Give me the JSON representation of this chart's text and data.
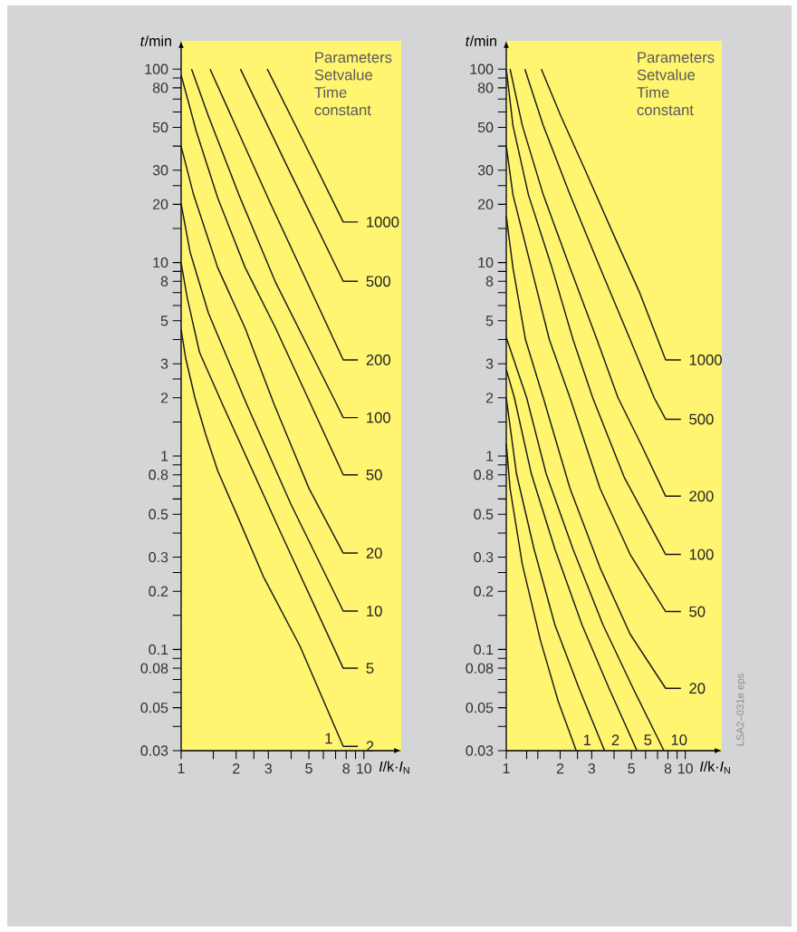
{
  "chart_data": [
    {
      "type": "line",
      "log": "xy",
      "xlabel": "*I*/k·*I*$_{N}$",
      "ylabel": "*t*/min",
      "legend_title": "Parameters Setvalue Time constant",
      "xlim": [
        1,
        16
      ],
      "ylim": [
        0.03,
        140
      ],
      "xticks": [
        1,
        {
          "value": 1.5,
          "label": null
        },
        2,
        {
          "value": 2.5,
          "label": null
        },
        3,
        {
          "value": 4,
          "label": null
        },
        5,
        {
          "value": 6,
          "label": null
        },
        {
          "value": 7,
          "label": null
        },
        8,
        {
          "value": 9,
          "label": null
        },
        10
      ],
      "yticks": [
        0.03,
        {
          "value": 0.04,
          "label": null
        },
        0.05,
        {
          "value": 0.06,
          "label": null
        },
        {
          "value": 0.07,
          "label": null
        },
        0.08,
        {
          "value": 0.09,
          "label": null
        },
        0.1,
        {
          "value": 0.15,
          "label": null
        },
        0.2,
        {
          "value": 0.25,
          "label": null
        },
        0.3,
        {
          "value": 0.4,
          "label": null
        },
        0.5,
        {
          "value": 0.6,
          "label": null
        },
        {
          "value": 0.7,
          "label": null
        },
        0.8,
        {
          "value": 0.9,
          "label": null
        },
        1,
        {
          "value": 1.5,
          "label": null
        },
        2,
        {
          "value": 2.5,
          "label": null
        },
        3,
        {
          "value": 4,
          "label": null
        },
        5,
        {
          "value": 6,
          "label": null
        },
        {
          "value": 7,
          "label": null
        },
        8,
        {
          "value": 9,
          "label": null
        },
        10,
        {
          "value": 15,
          "label": null
        },
        20,
        {
          "value": 25,
          "label": null
        },
        30,
        {
          "value": 40,
          "label": null
        },
        50,
        {
          "value": 60,
          "label": null
        },
        {
          "value": 70,
          "label": null
        },
        80,
        {
          "value": 90,
          "label": null
        },
        100
      ],
      "series": [
        {
          "name": "1000",
          "color": "#1a1a1a",
          "x": [
            2.96,
            4.77,
            7.71,
            9.27
          ],
          "values": [
            100,
            40.6,
            16.2,
            16.2
          ]
        },
        {
          "name": "500",
          "color": "#1a1a1a",
          "x": [
            2.11,
            3.98,
            7.71,
            9.27
          ],
          "values": [
            100,
            28.8,
            8.0,
            8.0
          ]
        },
        {
          "name": "200",
          "color": "#1a1a1a",
          "x": [
            1.44,
            3.04,
            7.71,
            9.27
          ],
          "values": [
            100,
            20.8,
            3.14,
            3.14
          ]
        },
        {
          "name": "100",
          "color": "#1a1a1a",
          "x": [
            1.14,
            1.41,
            2.07,
            3.29,
            7.08,
            7.71,
            9.27
          ],
          "values": [
            100,
            57.2,
            22.4,
            7.88,
            1.86,
            1.58,
            1.58
          ]
        },
        {
          "name": "50",
          "color": "#1a1a1a",
          "x": [
            1,
            1.21,
            1.585,
            2.24,
            3.29,
            5.11,
            7.71,
            9.27
          ],
          "values": [
            93,
            47.7,
            21.6,
            9.42,
            4.58,
            1.86,
            0.8,
            0.8
          ]
        },
        {
          "name": "20",
          "color": "#1a1a1a",
          "x": [
            1,
            1.17,
            1.585,
            2.24,
            3.22,
            5.01,
            7.71,
            9.27
          ],
          "values": [
            39.9,
            22.4,
            9.42,
            4.58,
            1.86,
            0.679,
            0.315,
            0.315
          ]
        },
        {
          "name": "10",
          "color": "#1a1a1a",
          "x": [
            1,
            1.12,
            1.41,
            2.28,
            3.98,
            7.71,
            9.27
          ],
          "values": [
            20.1,
            11.3,
            5.49,
            1.86,
            0.566,
            0.158,
            0.158
          ]
        },
        {
          "name": "5",
          "color": "#1a1a1a",
          "x": [
            1,
            1.08,
            1.26,
            1.68,
            3.41,
            7.71,
            9.27
          ],
          "values": [
            9.95,
            6.57,
            3.44,
            1.86,
            0.425,
            0.08,
            0.08
          ]
        },
        {
          "name": "2",
          "color": "#1a1a1a",
          "x": [
            1,
            1.06,
            1.19,
            1.36,
            1.585,
            1.995,
            2.82,
            4.47,
            7.71,
            9.27
          ],
          "values": [
            4.5,
            3.19,
            2.0,
            1.3,
            0.84,
            0.51,
            0.238,
            0.104,
            0.0316,
            0.0316
          ]
        }
      ],
      "annotations": [
        "1"
      ]
    },
    {
      "type": "line",
      "log": "xy",
      "xlabel": "*I*/k·*I*$_{N}$",
      "ylabel": "*t*/min",
      "legend_title": "Parameters Setvalue Time constant",
      "xlim": [
        1,
        16
      ],
      "ylim": [
        0.03,
        140
      ],
      "xticks": [
        1,
        {
          "value": 1.3,
          "label": null
        },
        {
          "value": 1.5,
          "label": null
        },
        2,
        {
          "value": 2.5,
          "label": null
        },
        3,
        {
          "value": 4,
          "label": null
        },
        5,
        {
          "value": 6,
          "label": null
        },
        {
          "value": 7,
          "label": null
        },
        8,
        {
          "value": 9,
          "label": null
        },
        10
      ],
      "yticks": [
        0.03,
        {
          "value": 0.04,
          "label": null
        },
        0.05,
        {
          "value": 0.06,
          "label": null
        },
        {
          "value": 0.07,
          "label": null
        },
        0.08,
        {
          "value": 0.09,
          "label": null
        },
        0.1,
        {
          "value": 0.15,
          "label": null
        },
        0.2,
        {
          "value": 0.25,
          "label": null
        },
        0.3,
        {
          "value": 0.4,
          "label": null
        },
        0.5,
        {
          "value": 0.6,
          "label": null
        },
        {
          "value": 0.7,
          "label": null
        },
        0.8,
        {
          "value": 0.9,
          "label": null
        },
        1,
        {
          "value": 1.5,
          "label": null
        },
        2,
        {
          "value": 2.5,
          "label": null
        },
        3,
        {
          "value": 4,
          "label": null
        },
        5,
        {
          "value": 6,
          "label": null
        },
        {
          "value": 7,
          "label": null
        },
        8,
        {
          "value": 9,
          "label": null
        },
        10,
        {
          "value": 15,
          "label": null
        },
        20,
        {
          "value": 25,
          "label": null
        },
        30,
        {
          "value": 40,
          "label": null
        },
        50,
        {
          "value": 60,
          "label": null
        },
        {
          "value": 70,
          "label": null
        },
        80,
        {
          "value": 90,
          "label": null
        },
        100
      ],
      "series": [
        {
          "name": "1000",
          "color": "#1a1a1a",
          "x": [
            1.57,
            2.02,
            2.76,
            3.9,
            5.52,
            7.77,
            9.45
          ],
          "values": [
            100,
            57,
            30,
            14.5,
            7.1,
            3.14,
            3.14
          ]
        },
        {
          "name": "500",
          "color": "#1a1a1a",
          "x": [
            1.27,
            1.61,
            2.27,
            3.34,
            4.92,
            6.7,
            7.77,
            9.45
          ],
          "values": [
            100,
            51,
            22.4,
            9.4,
            4.0,
            2.0,
            1.55,
            1.55
          ]
        },
        {
          "name": "200",
          "color": "#1a1a1a",
          "x": [
            1.05,
            1.23,
            1.61,
            2.27,
            3.21,
            4.21,
            5.74,
            7.77,
            9.45
          ],
          "values": [
            100,
            51,
            22.4,
            9.4,
            4.0,
            2.0,
            1.12,
            0.62,
            0.62
          ]
        },
        {
          "name": "100",
          "color": "#1a1a1a",
          "x": [
            1,
            1.09,
            1.33,
            1.8,
            2.36,
            3.04,
            4.55,
            7.77,
            9.45
          ],
          "values": [
            100,
            51,
            22.4,
            9.4,
            4.0,
            2.0,
            0.78,
            0.31,
            0.31
          ]
        },
        {
          "name": "50",
          "color": "#1a1a1a",
          "x": [
            1,
            1.09,
            1.38,
            1.74,
            2.27,
            3.34,
            4.92,
            7.77,
            9.45
          ],
          "values": [
            40,
            22.4,
            9.4,
            4.0,
            2.0,
            0.68,
            0.31,
            0.157,
            0.157
          ]
        },
        {
          "name": "20",
          "color": "#1a1a1a",
          "x": [
            1,
            1.09,
            1.28,
            1.61,
            2.27,
            3.34,
            4.92,
            7.77,
            9.45
          ],
          "values": [
            17.4,
            9.4,
            4.0,
            2.0,
            0.68,
            0.265,
            0.12,
            0.063,
            0.063
          ]
        },
        {
          "name": "10",
          "color": "#1a1a1a",
          "x": [
            1,
            1.3,
            1.67,
            2.36,
            3.47,
            5.11,
            7.6
          ],
          "values": [
            4.1,
            2.0,
            0.81,
            0.33,
            0.134,
            0.063,
            0.03
          ]
        },
        {
          "name": "5",
          "color": "#1a1a1a",
          "x": [
            1,
            1.11,
            1.38,
            1.87,
            2.65,
            3.75,
            5.37
          ],
          "values": [
            2.8,
            2.0,
            0.81,
            0.33,
            0.134,
            0.063,
            0.03
          ]
        },
        {
          "name": "2",
          "color": "#1a1a1a",
          "x": [
            1,
            1.14,
            1.43,
            1.87,
            2.55,
            3.54
          ],
          "values": [
            2.0,
            0.81,
            0.33,
            0.134,
            0.063,
            0.03
          ]
        },
        {
          "name": "1",
          "color": "#1a1a1a",
          "x": [
            1,
            1.05,
            1.23,
            1.55,
            1.95,
            2.46
          ],
          "values": [
            1.16,
            0.68,
            0.275,
            0.112,
            0.054,
            0.03
          ]
        }
      ],
      "annotations": [
        "LSA2–031e eps"
      ]
    }
  ]
}
